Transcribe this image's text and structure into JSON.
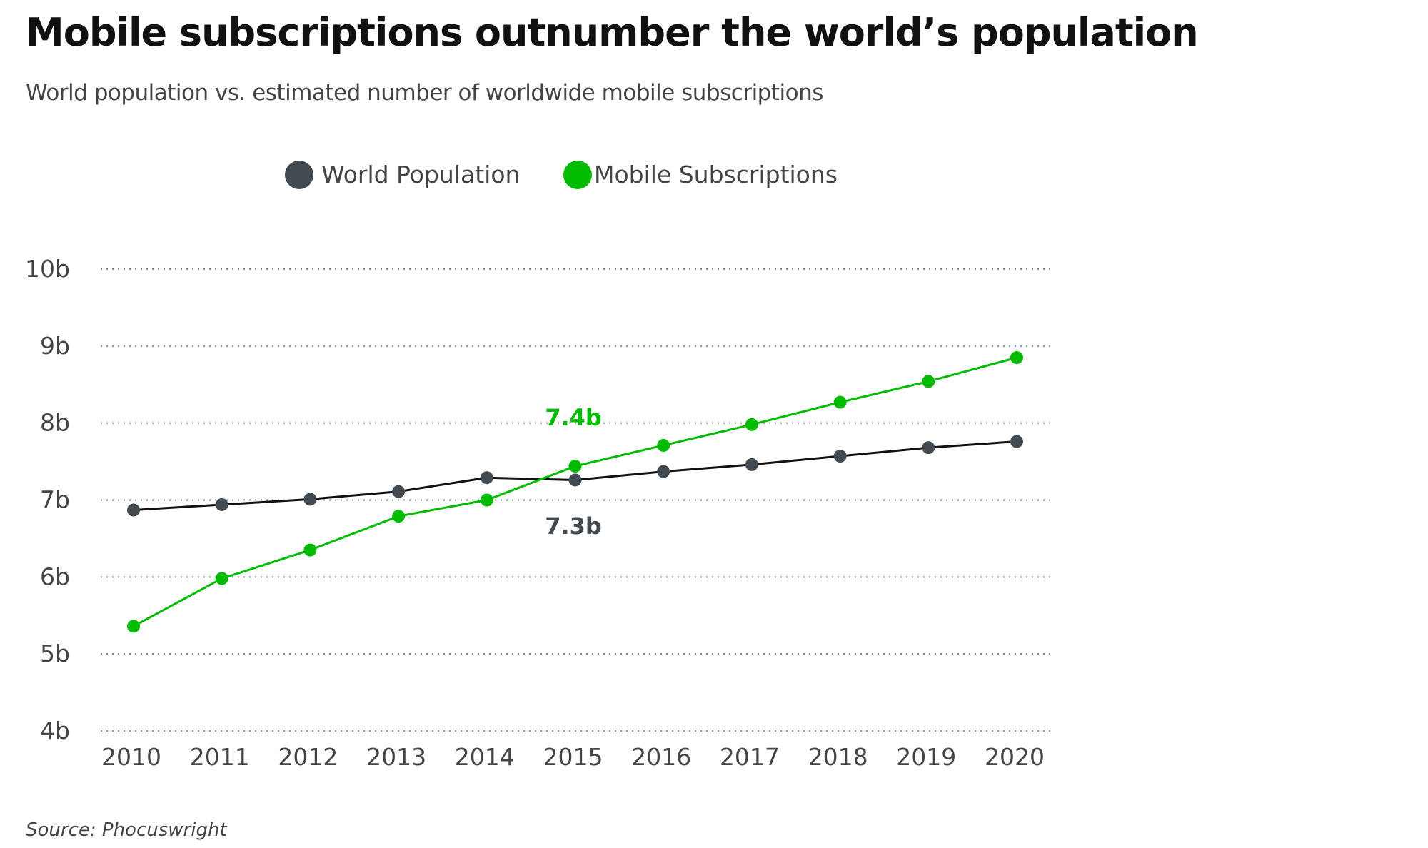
{
  "chart_data": {
    "type": "line",
    "title": "Mobile subscriptions outnumber the world’s population",
    "subtitle": "World population vs. estimated number of worldwide mobile subscriptions",
    "source": "Source: Phocuswright",
    "xlabel": "",
    "ylabel": "",
    "x": [
      2010,
      2011,
      2012,
      2013,
      2014,
      2015,
      2016,
      2017,
      2018,
      2019,
      2020
    ],
    "x_tick_labels": [
      "2010",
      "2011",
      "2012",
      "2013",
      "2014",
      "2015",
      "2016",
      "2017",
      "2018",
      "2019",
      "2020"
    ],
    "ylim": [
      4,
      10
    ],
    "y_ticks": [
      4,
      5,
      6,
      7,
      8,
      9,
      10
    ],
    "y_tick_labels": [
      "4b",
      "5b",
      "6b",
      "7b",
      "8b",
      "9b",
      "10b"
    ],
    "grid": "horizontal dotted",
    "legend_position": "top",
    "series": [
      {
        "name": "World Population",
        "color": "#424a52",
        "line_color": "#111111",
        "values": [
          6.87,
          6.94,
          7.01,
          7.11,
          7.29,
          7.26,
          7.37,
          7.46,
          7.57,
          7.68,
          7.76
        ]
      },
      {
        "name": "Mobile Subscriptions",
        "color": "#00bb00",
        "line_color": "#00bb00",
        "values": [
          5.36,
          5.98,
          6.35,
          6.79,
          7.0,
          7.44,
          7.71,
          7.98,
          8.27,
          8.54,
          8.85
        ]
      }
    ],
    "annotations": [
      {
        "text": "7.4b",
        "x": 2015,
        "series": "Mobile Subscriptions"
      },
      {
        "text": "7.3b",
        "x": 2015,
        "series": "World Population"
      }
    ]
  }
}
